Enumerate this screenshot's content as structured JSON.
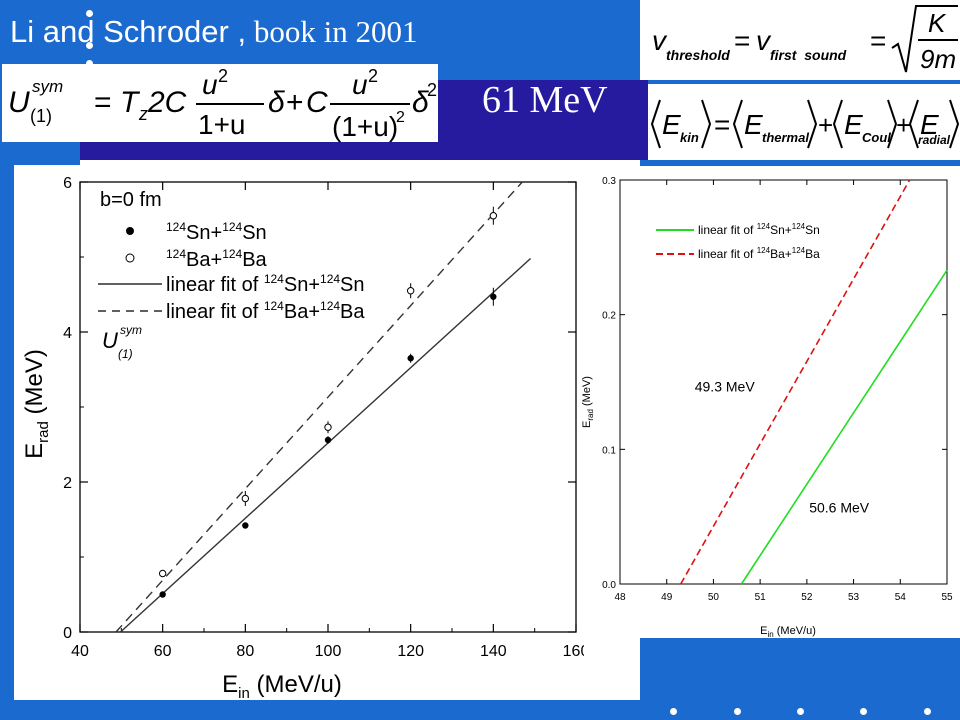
{
  "header": {
    "title_part1": "Li and Schroder ,",
    "title_part2": " book in 2001",
    "energy_label": "61 MeV"
  },
  "equations": {
    "sym_potential": {
      "lhs": "U",
      "sub": "(1)",
      "sup": "sym",
      "eq": "=",
      "tz": "T",
      "tz_sub": "z",
      "two_c": "2C",
      "num": "u",
      "num_exp": "2",
      "den1": "1+u",
      "delta": "δ",
      "plus": "+",
      "c": "C",
      "den2": "(1+u)",
      "den2_exp": "2",
      "delta_exp": "2"
    },
    "threshold": {
      "v1": "v",
      "v1_sub": "threshold",
      "eq": "=",
      "v2": "v",
      "v2_sub": "first  sound",
      "eq2": "=",
      "k": "K",
      "nine_m": "9m"
    },
    "energy_balance": {
      "lhs": "E",
      "lhs_sub": "kin",
      "eq": "=",
      "e1": "E",
      "e1_sub": "thermal",
      "plus": "+",
      "e2": "E",
      "e2_sub": "Coul",
      "e3": "E",
      "e3_sub": "radial"
    }
  },
  "chart_data": [
    {
      "type": "scatter",
      "xlabel": "E",
      "xlabel_sub": "in",
      "xlabel_rest": " (MeV/u)",
      "ylabel": "E",
      "ylabel_sub": "rad",
      "ylabel_rest": " (MeV)",
      "xlim": [
        40,
        160
      ],
      "ylim": [
        0,
        6
      ],
      "xticks": [
        40,
        60,
        80,
        100,
        120,
        140,
        160
      ],
      "yticks": [
        0,
        2,
        4,
        6
      ],
      "legend": {
        "header": "b=0 fm",
        "placement": "top-left",
        "entries": [
          {
            "marker": "filled-circle",
            "sup1": "124",
            "el1": "Sn+",
            "sup2": "124",
            "el2": "Sn"
          },
          {
            "marker": "open-circle",
            "sup1": "124",
            "el1": "Ba+",
            "sup2": "124",
            "el2": "Ba"
          },
          {
            "marker": "solid-line",
            "prefix": "linear fit of ",
            "sup1": "124",
            "el1": "Sn+",
            "sup2": "124",
            "el2": "Sn"
          },
          {
            "marker": "dashed-line",
            "prefix": "linear fit of ",
            "sup1": "124",
            "el1": "Ba+",
            "sup2": "124",
            "el2": "Ba"
          }
        ]
      },
      "annotation": {
        "text": "U",
        "sub": "(1)",
        "sup": "sym"
      },
      "series": [
        {
          "name": "Sn",
          "marker": "filled-circle",
          "x": [
            60,
            80,
            100,
            120,
            140
          ],
          "y": [
            0.5,
            1.42,
            2.56,
            3.65,
            4.47
          ],
          "err": [
            0.04,
            0.04,
            0.05,
            0.06,
            0.12
          ]
        },
        {
          "name": "Ba",
          "marker": "open-circle",
          "x": [
            60,
            80,
            100,
            120,
            140
          ],
          "y": [
            0.78,
            1.78,
            2.73,
            4.55,
            5.55
          ],
          "err": [
            0.04,
            0.1,
            0.08,
            0.1,
            0.12
          ]
        }
      ],
      "fits": [
        {
          "style": "solid",
          "x": [
            49.8,
            149
          ],
          "y": [
            0,
            4.98
          ]
        },
        {
          "style": "dashed",
          "x": [
            48.7,
            147
          ],
          "y": [
            0,
            6
          ]
        }
      ]
    },
    {
      "type": "line",
      "xlabel": "E",
      "xlabel_sub": "in",
      "xlabel_rest": " (MeV/u)",
      "ylabel": "E",
      "ylabel_sub": "rad",
      "ylabel_rest": " (MeV)",
      "xlim": [
        48,
        55
      ],
      "ylim": [
        0,
        0.3
      ],
      "xticks": [
        48,
        49,
        50,
        51,
        52,
        53,
        54,
        55
      ],
      "yticks": [
        "0.0",
        "0.1",
        "0.2",
        "0.3"
      ],
      "legend": {
        "placement": "top-left",
        "entries": [
          {
            "color": "#22dd22",
            "style": "solid",
            "prefix": "linear fit of ",
            "sup1": "124",
            "el1": "Sn+",
            "sup2": "124",
            "el2": "Sn"
          },
          {
            "color": "#dd1111",
            "style": "dashed",
            "prefix": "linear fit of ",
            "sup1": "124",
            "el1": "Ba+",
            "sup2": "124",
            "el2": "Ba"
          }
        ]
      },
      "annotations": [
        {
          "text": "49.3 MeV",
          "x": 49.6,
          "y": 0.143
        },
        {
          "text": "50.6 MeV",
          "x": 52.05,
          "y": 0.053
        }
      ],
      "series": [
        {
          "color": "#22dd22",
          "style": "solid",
          "x": [
            50.6,
            55
          ],
          "y": [
            0,
            0.233
          ]
        },
        {
          "color": "#dd1111",
          "style": "dashed",
          "x": [
            49.3,
            54.2
          ],
          "y": [
            0,
            0.3
          ]
        }
      ]
    }
  ]
}
